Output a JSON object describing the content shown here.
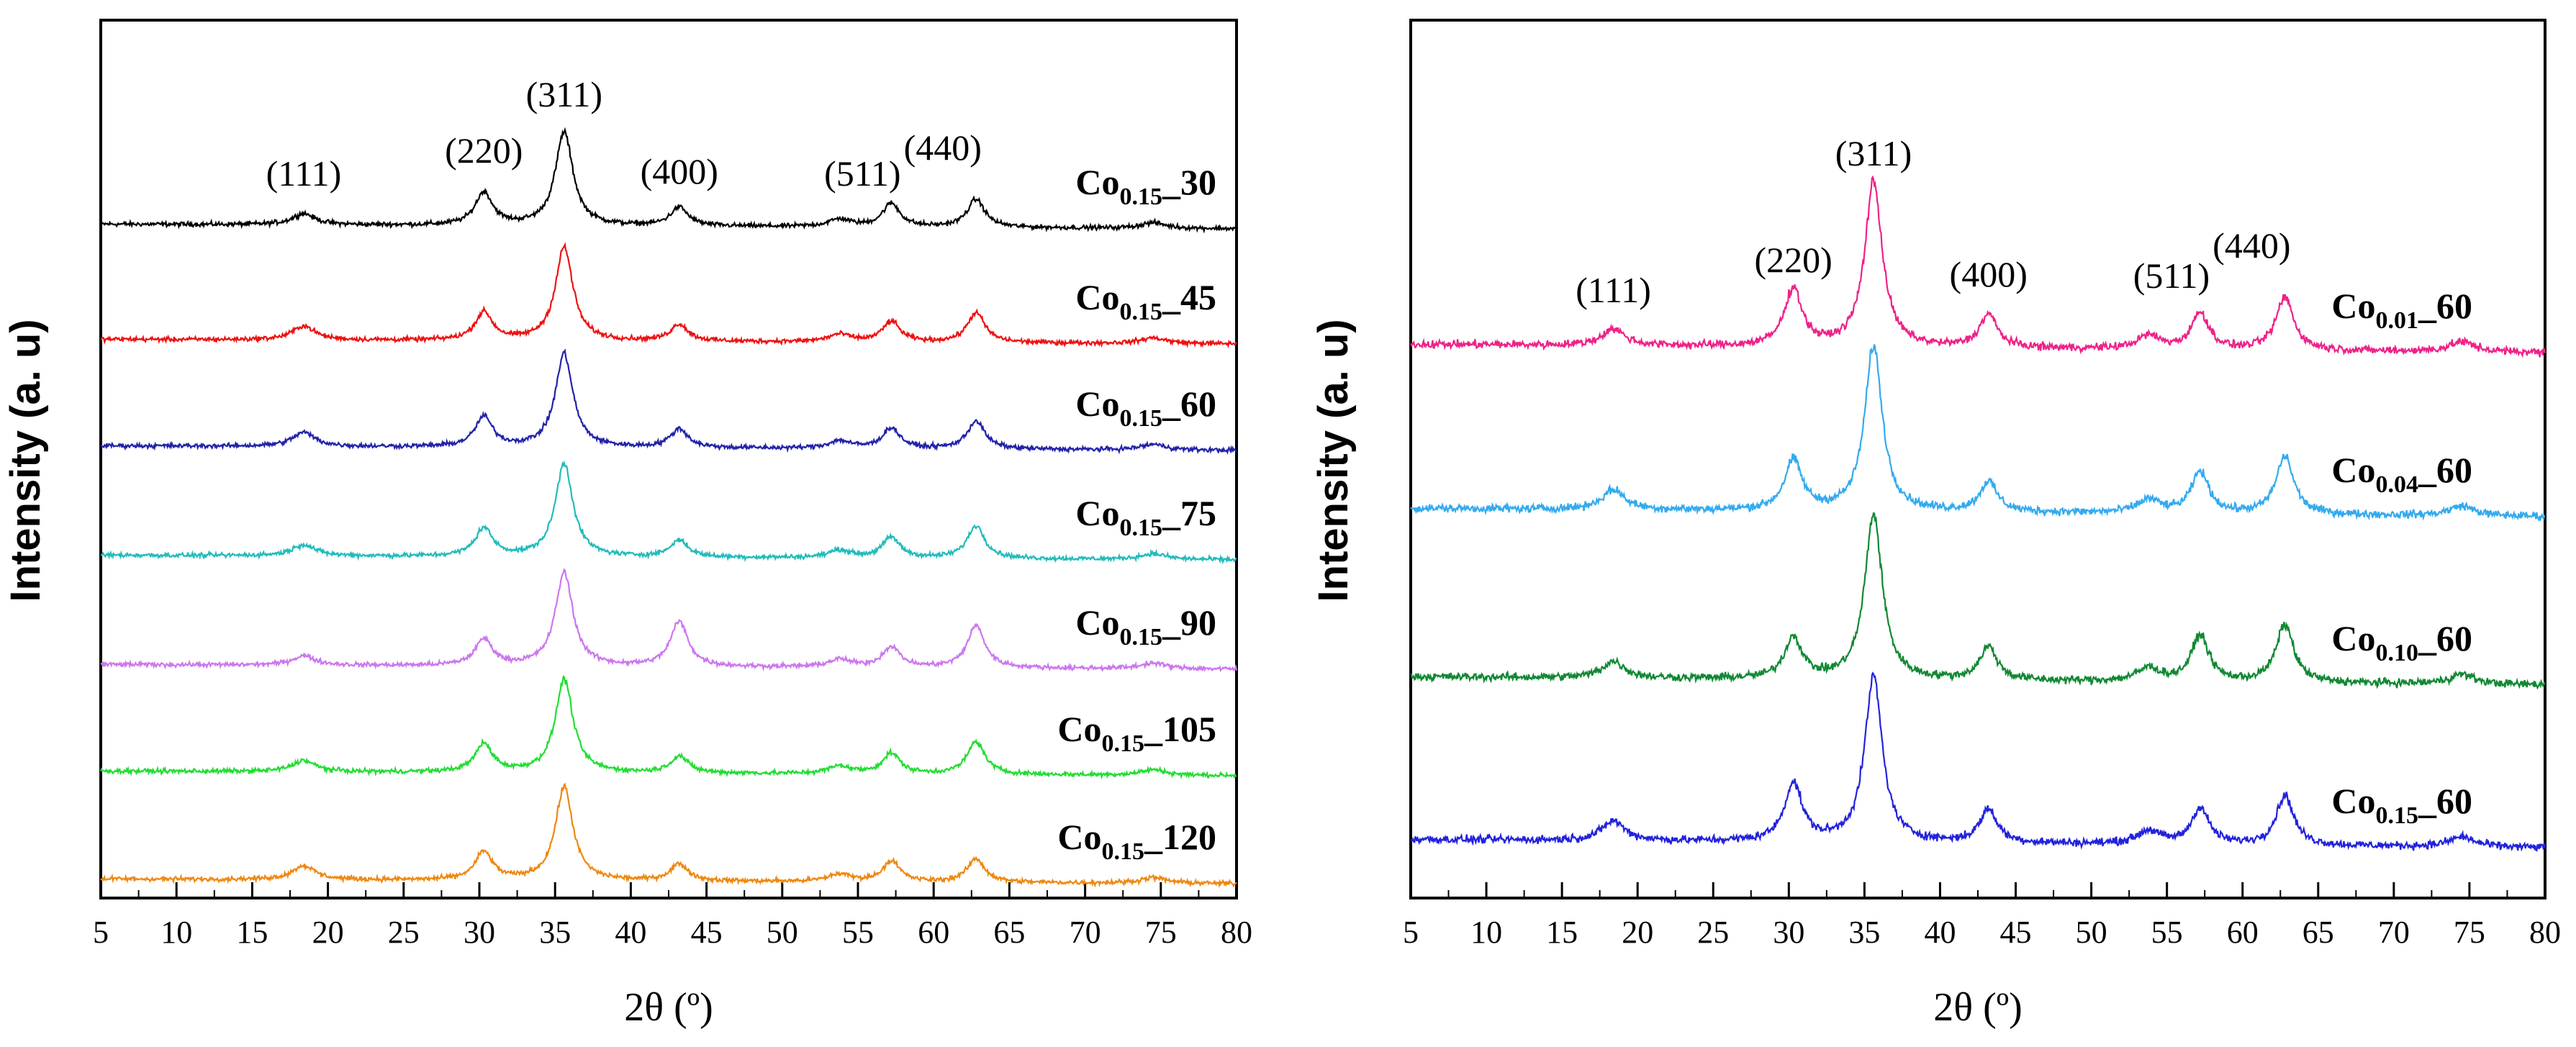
{
  "chart_data": [
    {
      "type": "line",
      "panel": "left",
      "title": "",
      "xlabel": "2θ (º)",
      "ylabel": "Intensity (a. u)",
      "xlim": [
        5,
        80
      ],
      "xticks": [
        5,
        10,
        15,
        20,
        25,
        30,
        35,
        40,
        45,
        50,
        55,
        60,
        65,
        70,
        75,
        80
      ],
      "grid": false,
      "peaks": [
        {
          "label": "(111)",
          "x": 18.4
        },
        {
          "label": "(220)",
          "x": 30.3
        },
        {
          "label": "(311)",
          "x": 35.6
        },
        {
          "label": "(400)",
          "x": 43.2
        },
        {
          "label": "(511)",
          "x": 57.2
        },
        {
          "label": "(440)",
          "x": 62.8
        }
      ],
      "series": [
        {
          "name": "Co0.15_30",
          "base": "Co",
          "sub": "0.15",
          "suffix": "_30",
          "color": "#000000",
          "intensities": [
            0.12,
            0.35,
            1.0,
            0.2,
            0.25,
            0.3
          ]
        },
        {
          "name": "Co0.15_45",
          "base": "Co",
          "sub": "0.15",
          "suffix": "_45",
          "color": "#ee1111",
          "intensities": [
            0.15,
            0.3,
            1.0,
            0.18,
            0.22,
            0.32
          ]
        },
        {
          "name": "Co0.15_60",
          "base": "Co",
          "sub": "0.15",
          "suffix": "_60",
          "color": "#2222aa",
          "intensities": [
            0.15,
            0.32,
            1.0,
            0.2,
            0.22,
            0.3
          ]
        },
        {
          "name": "Co0.15_75",
          "base": "Co",
          "sub": "0.15",
          "suffix": "_75",
          "color": "#22bbbb",
          "intensities": [
            0.12,
            0.3,
            1.0,
            0.18,
            0.22,
            0.35
          ]
        },
        {
          "name": "Co0.15_90",
          "base": "Co",
          "sub": "0.15",
          "suffix": "_90",
          "color": "#cc77ee",
          "intensities": [
            0.1,
            0.28,
            1.0,
            0.48,
            0.22,
            0.45
          ]
        },
        {
          "name": "Co0.15_105",
          "base": "Co",
          "sub": "0.15",
          "suffix": "_105",
          "color": "#22dd33",
          "intensities": [
            0.12,
            0.3,
            1.0,
            0.18,
            0.22,
            0.35
          ]
        },
        {
          "name": "Co0.15_120",
          "base": "Co",
          "sub": "0.15",
          "suffix": "_120",
          "color": "#ee8811",
          "intensities": [
            0.15,
            0.3,
            1.0,
            0.18,
            0.22,
            0.25
          ]
        }
      ]
    },
    {
      "type": "line",
      "panel": "right",
      "title": "",
      "xlabel": "2θ (º)",
      "ylabel": "Intensity (a. u)",
      "xlim": [
        5,
        80
      ],
      "xticks": [
        5,
        10,
        15,
        20,
        25,
        30,
        35,
        40,
        45,
        50,
        55,
        60,
        65,
        70,
        75,
        80
      ],
      "grid": false,
      "peaks": [
        {
          "label": "(111)",
          "x": 18.4
        },
        {
          "label": "(220)",
          "x": 30.3
        },
        {
          "label": "(311)",
          "x": 35.6
        },
        {
          "label": "(400)",
          "x": 43.2
        },
        {
          "label": "(511)",
          "x": 57.2
        },
        {
          "label": "(440)",
          "x": 62.8
        }
      ],
      "series": [
        {
          "name": "Co0.01_60",
          "base": "Co",
          "sub": "0.01",
          "suffix": "_60",
          "color": "#ee2288",
          "intensities": [
            0.1,
            0.35,
            1.0,
            0.2,
            0.22,
            0.32
          ]
        },
        {
          "name": "Co0.04_60",
          "base": "Co",
          "sub": "0.04",
          "suffix": "_60",
          "color": "#33aaee",
          "intensities": [
            0.12,
            0.3,
            1.0,
            0.18,
            0.25,
            0.35
          ]
        },
        {
          "name": "Co0.10_60",
          "base": "Co",
          "sub": "0.10",
          "suffix": "_60",
          "color": "#118833",
          "intensities": [
            0.1,
            0.25,
            1.0,
            0.2,
            0.28,
            0.35
          ]
        },
        {
          "name": "Co0.15_60",
          "base": "Co",
          "sub": "0.15",
          "suffix": "_60",
          "color": "#2222dd",
          "intensities": [
            0.12,
            0.35,
            1.0,
            0.2,
            0.22,
            0.3
          ]
        }
      ]
    }
  ]
}
